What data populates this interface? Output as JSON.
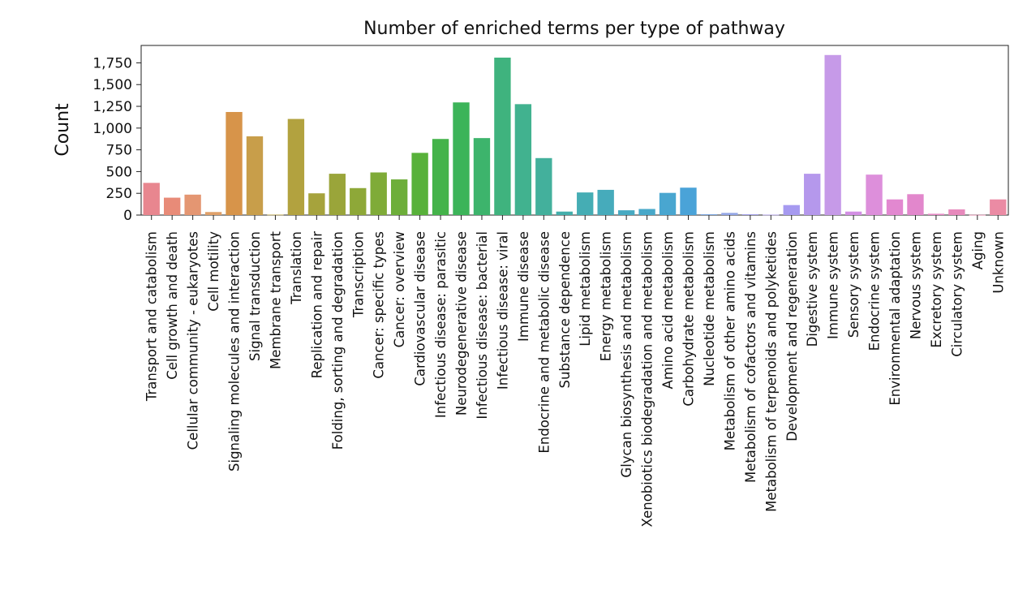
{
  "chart_data": {
    "type": "bar",
    "title": "Number of enriched terms per type of pathway",
    "xlabel": "",
    "ylabel": "Count",
    "ylim": [
      0,
      1950
    ],
    "yticks": [
      0,
      250,
      500,
      750,
      1000,
      1250,
      1500,
      1750
    ],
    "ytick_labels": [
      "0",
      "250",
      "500",
      "750",
      "1,000",
      "1,250",
      "1,500",
      "1,750"
    ],
    "grid": false,
    "categories": [
      "Transport and catabolism",
      "Cell growth and death",
      "Cellular community - eukaryotes",
      "Cell motility",
      "Signaling molecules and interaction",
      "Signal transduction",
      "Membrane transport",
      "Translation",
      "Replication and repair",
      "Folding, sorting and degradation",
      "Transcription",
      "Cancer: specific types",
      "Cancer: overview",
      "Cardiovascular disease",
      "Infectious disease: parasitic",
      "Neurodegenerative disease",
      "Infectious disease: bacterial",
      "Infectious disease: viral",
      "Immune disease",
      "Endocrine and metabolic disease",
      "Substance dependence",
      "Lipid metabolism",
      "Energy metabolism",
      "Glycan biosynthesis and metabolism",
      "Xenobiotics biodegradation and metabolism",
      "Amino acid metabolism",
      "Carbohydrate metabolism",
      "Nucleotide metabolism",
      "Metabolism of other amino acids",
      "Metabolism of cofactors and vitamins",
      "Metabolism of terpenoids and polyketides",
      "Development and regeneration",
      "Digestive system",
      "Immune system",
      "Sensory system",
      "Endocrine system",
      "Environmental adaptation",
      "Nervous system",
      "Excretory system",
      "Circulatory system",
      "Aging",
      "Unknown"
    ],
    "values": [
      370,
      200,
      235,
      35,
      1185,
      905,
      5,
      1105,
      250,
      475,
      310,
      490,
      410,
      715,
      875,
      1295,
      885,
      1810,
      1275,
      655,
      40,
      260,
      290,
      55,
      70,
      255,
      315,
      10,
      25,
      10,
      5,
      115,
      475,
      1840,
      40,
      465,
      180,
      240,
      15,
      65,
      3,
      180
    ],
    "colors": [
      "#e8868f",
      "#e88b78",
      "#e49672",
      "#dfa06a",
      "#d7944a",
      "#c89e4a",
      "#bba246",
      "#b2a23f",
      "#a6a33c",
      "#9aa53a",
      "#8ea838",
      "#7fab38",
      "#6dae3a",
      "#58b13a",
      "#44b34a",
      "#3cb459",
      "#3db46c",
      "#3fb37e",
      "#41b28f",
      "#43b09c",
      "#44aeab",
      "#45adb4",
      "#46abbb",
      "#47aac2",
      "#48a8c9",
      "#49a6d0",
      "#4aa3d8",
      "#7da7e0",
      "#94a6e6",
      "#a5a3ea",
      "#b3a0ec",
      "#a69af0",
      "#b598ec",
      "#c69ae8",
      "#d38fe4",
      "#dd8fdb",
      "#e288d0",
      "#e287cc",
      "#e589c4",
      "#e789bc",
      "#e98ab0",
      "#eb8ba4"
    ]
  }
}
